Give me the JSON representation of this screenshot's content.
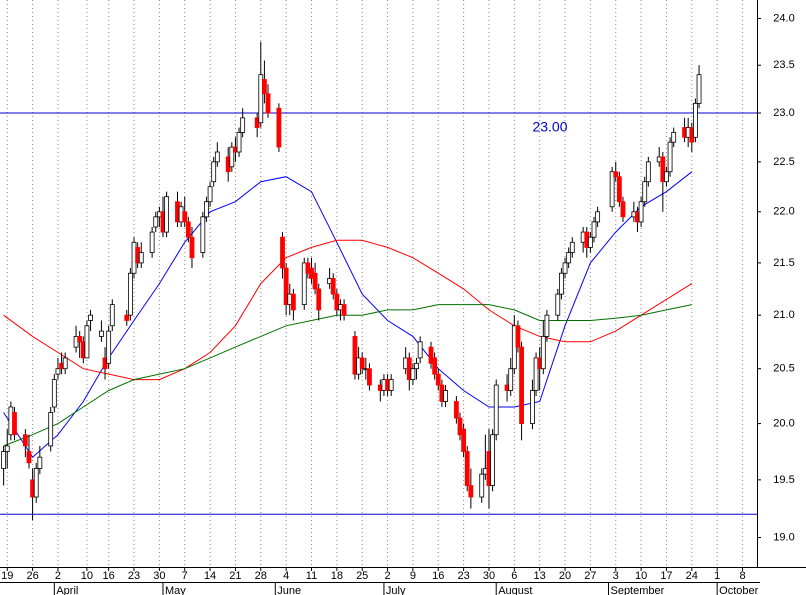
{
  "chart_data": {
    "type": "candlestick",
    "log_scale": true,
    "grid": true,
    "up_color": "#ffffff",
    "down_color": "#ff0000",
    "outline_color": "#000000",
    "xlim": [
      "03-17",
      "10-12"
    ],
    "ylim": [
      18.75,
      24.2
    ],
    "yticks": [
      {
        "value": 19,
        "label": "19.0"
      },
      {
        "value": 19.5,
        "label": "19.5"
      },
      {
        "value": 20,
        "label": "20.0"
      },
      {
        "value": 20.5,
        "label": "20.5"
      },
      {
        "value": 21,
        "label": "21.0"
      },
      {
        "value": 21.5,
        "label": "21.5"
      },
      {
        "value": 22,
        "label": "22.0"
      },
      {
        "value": 22.5,
        "label": "22.5"
      },
      {
        "value": 23,
        "label": "23.0"
      },
      {
        "value": 23.5,
        "label": "23.5"
      },
      {
        "value": 24,
        "label": "24.0"
      }
    ],
    "xticks": [
      {
        "value": "03-19",
        "label": "19"
      },
      {
        "value": "03-26",
        "label": "26"
      },
      {
        "value": "04-02",
        "label": "2"
      },
      {
        "value": "04-10",
        "label": "10"
      },
      {
        "value": "04-16",
        "label": "16"
      },
      {
        "value": "04-23",
        "label": "23"
      },
      {
        "value": "04-30",
        "label": "30"
      },
      {
        "value": "05-07",
        "label": "7"
      },
      {
        "value": "05-14",
        "label": "14"
      },
      {
        "value": "05-21",
        "label": "21"
      },
      {
        "value": "05-28",
        "label": "28"
      },
      {
        "value": "06-04",
        "label": "4"
      },
      {
        "value": "06-11",
        "label": "11"
      },
      {
        "value": "06-18",
        "label": "18"
      },
      {
        "value": "06-25",
        "label": "25"
      },
      {
        "value": "07-02",
        "label": "2"
      },
      {
        "value": "07-09",
        "label": "9"
      },
      {
        "value": "07-16",
        "label": "16"
      },
      {
        "value": "07-23",
        "label": "23"
      },
      {
        "value": "07-30",
        "label": "30"
      },
      {
        "value": "08-06",
        "label": "6"
      },
      {
        "value": "08-13",
        "label": "13"
      },
      {
        "value": "08-20",
        "label": "20"
      },
      {
        "value": "08-27",
        "label": "27"
      },
      {
        "value": "09-03",
        "label": "3"
      },
      {
        "value": "09-10",
        "label": "10"
      },
      {
        "value": "09-17",
        "label": "17"
      },
      {
        "value": "09-24",
        "label": "24"
      },
      {
        "value": "10-01",
        "label": "1"
      },
      {
        "value": "10-08",
        "label": "8"
      }
    ],
    "month_labels": [
      {
        "value": "04-01",
        "label": "April"
      },
      {
        "value": "05-01",
        "label": "May"
      },
      {
        "value": "06-01",
        "label": "June"
      },
      {
        "value": "07-01",
        "label": "July"
      },
      {
        "value": "08-01",
        "label": "August"
      },
      {
        "value": "09-01",
        "label": "September"
      },
      {
        "value": "10-01",
        "label": "October"
      }
    ],
    "hlines": [
      {
        "value": 23,
        "label": "23.00",
        "color": "#0000cc"
      },
      {
        "value": 19.2,
        "color": "#0000cc"
      }
    ],
    "x": [
      "03-18",
      "03-19",
      "03-20",
      "03-21",
      "03-24",
      "03-25",
      "03-26",
      "03-27",
      "03-28",
      "03-31",
      "04-01",
      "04-02",
      "04-03",
      "04-04",
      "04-07",
      "04-08",
      "04-09",
      "04-10",
      "04-11",
      "04-14",
      "04-15",
      "04-16",
      "04-17",
      "04-21",
      "04-22",
      "04-23",
      "04-24",
      "04-25",
      "04-28",
      "04-29",
      "04-30",
      "05-01",
      "05-02",
      "05-05",
      "05-06",
      "05-07",
      "05-08",
      "05-09",
      "05-12",
      "05-13",
      "05-14",
      "05-15",
      "05-16",
      "05-19",
      "05-20",
      "05-21",
      "05-22",
      "05-23",
      "05-27",
      "05-28",
      "05-29",
      "05-30",
      "06-02",
      "06-03",
      "06-04",
      "06-05",
      "06-06",
      "06-09",
      "06-10",
      "06-11",
      "06-12",
      "06-13",
      "06-16",
      "06-17",
      "06-18",
      "06-19",
      "06-20",
      "06-23",
      "06-24",
      "06-25",
      "06-26",
      "06-27",
      "06-30",
      "07-01",
      "07-02",
      "07-03",
      "07-07",
      "07-08",
      "07-09",
      "07-10",
      "07-11",
      "07-14",
      "07-15",
      "07-16",
      "07-17",
      "07-18",
      "07-21",
      "07-22",
      "07-23",
      "07-24",
      "07-25",
      "07-28",
      "07-29",
      "07-30",
      "07-31",
      "08-01",
      "08-04",
      "08-05",
      "08-06",
      "08-07",
      "08-08",
      "08-11",
      "08-12",
      "08-13",
      "08-14",
      "08-15",
      "08-18",
      "08-19",
      "08-20",
      "08-21",
      "08-22",
      "08-25",
      "08-26",
      "08-27",
      "08-28",
      "08-29",
      "09-02",
      "09-03",
      "09-04",
      "09-05",
      "09-08",
      "09-09",
      "09-10",
      "09-11",
      "09-12",
      "09-15",
      "09-16",
      "09-17",
      "09-18",
      "09-19",
      "09-22",
      "09-23",
      "09-24",
      "09-25",
      "09-26"
    ],
    "open": [
      19.6,
      19.75,
      19.9,
      20.1,
      19.9,
      19.75,
      19.5,
      19.35,
      19.6,
      19.8,
      20.15,
      20.45,
      20.55,
      20.5,
      20.7,
      20.8,
      20.75,
      20.6,
      20.95,
      20.8,
      20.6,
      20.55,
      20.9,
      21.0,
      21.0,
      21.4,
      21.65,
      21.5,
      21.6,
      21.85,
      21.95,
      22.0,
      21.8,
      22.1,
      21.9,
      22.0,
      21.9,
      21.75,
      21.6,
      21.95,
      22.1,
      22.3,
      22.5,
      22.55,
      22.45,
      22.65,
      22.6,
      22.8,
      22.95,
      22.9,
      23.35,
      23.2,
      23.05,
      21.75,
      21.45,
      21.1,
      21.2,
      21.1,
      21.5,
      21.45,
      21.4,
      21.25,
      21.3,
      21.35,
      21.2,
      21.05,
      21.1,
      20.8,
      20.45,
      20.6,
      20.5,
      20.5,
      20.35,
      20.3,
      20.4,
      20.3,
      20.5,
      20.6,
      20.4,
      20.5,
      20.6,
      20.7,
      20.6,
      20.45,
      20.35,
      20.2,
      20.2,
      20.05,
      19.95,
      19.75,
      19.45,
      19.35,
      19.55,
      19.75,
      19.45,
      19.9,
      20.35,
      20.3,
      20.5,
      20.9,
      20.7,
      20.0,
      20.3,
      20.6,
      20.5,
      20.8,
      21.0,
      21.2,
      21.4,
      21.5,
      21.6,
      21.7,
      21.8,
      21.65,
      21.75,
      21.9,
      22.05,
      22.4,
      22.35,
      22.1,
      21.95,
      22.0,
      21.9,
      22.1,
      22.3,
      22.5,
      22.55,
      22.3,
      22.4,
      22.7,
      22.85,
      22.75,
      22.85,
      22.75,
      23.1
    ],
    "high": [
      19.8,
      19.95,
      20.2,
      20.15,
      19.95,
      19.9,
      19.6,
      19.65,
      19.8,
      20.15,
      20.45,
      20.6,
      20.65,
      20.65,
      20.9,
      20.85,
      20.8,
      20.95,
      21.05,
      20.95,
      20.7,
      20.9,
      21.15,
      21.05,
      21.45,
      21.75,
      21.7,
      21.7,
      21.85,
      22.0,
      22.05,
      22.15,
      22.2,
      22.2,
      22.1,
      22.15,
      21.95,
      21.85,
      22.0,
      22.15,
      22.3,
      22.55,
      22.7,
      22.65,
      22.7,
      22.75,
      22.85,
      23.05,
      23.0,
      23.75,
      23.55,
      23.3,
      23.1,
      21.8,
      21.5,
      21.3,
      21.25,
      21.55,
      21.55,
      21.55,
      21.5,
      21.3,
      21.45,
      21.4,
      21.25,
      21.15,
      21.15,
      20.85,
      20.7,
      20.65,
      20.6,
      20.55,
      20.4,
      20.45,
      20.45,
      20.45,
      20.7,
      20.65,
      20.55,
      20.6,
      20.8,
      20.75,
      20.65,
      20.5,
      20.4,
      20.35,
      20.25,
      20.1,
      20.0,
      19.8,
      19.6,
      19.6,
      19.9,
      19.95,
      19.95,
      20.4,
      20.45,
      20.6,
      21.0,
      20.95,
      20.75,
      20.4,
      20.65,
      20.7,
      20.95,
      21.05,
      21.25,
      21.45,
      21.55,
      21.65,
      21.75,
      21.85,
      21.85,
      21.8,
      21.95,
      22.05,
      22.45,
      22.5,
      22.4,
      22.15,
      22.1,
      22.05,
      22.15,
      22.35,
      22.55,
      22.65,
      22.6,
      22.45,
      22.75,
      22.85,
      22.95,
      22.95,
      22.9,
      23.15,
      23.5
    ],
    "low": [
      19.45,
      19.6,
      19.85,
      19.85,
      19.7,
      19.6,
      19.15,
      19.3,
      19.55,
      19.75,
      20.1,
      20.4,
      20.45,
      20.45,
      20.65,
      20.6,
      20.55,
      20.6,
      20.85,
      20.75,
      20.4,
      20.5,
      20.85,
      20.9,
      20.95,
      21.35,
      21.45,
      21.45,
      21.55,
      21.8,
      21.85,
      21.75,
      21.75,
      21.85,
      21.85,
      21.85,
      21.7,
      21.45,
      21.55,
      21.9,
      22.05,
      22.25,
      22.45,
      22.3,
      22.4,
      22.5,
      22.55,
      22.75,
      22.75,
      22.85,
      23.1,
      22.95,
      22.6,
      21.35,
      21.0,
      21.0,
      20.95,
      21.05,
      21.35,
      21.3,
      21.2,
      20.95,
      21.25,
      21.15,
      21.0,
      20.95,
      20.95,
      20.4,
      20.4,
      20.45,
      20.4,
      20.3,
      20.2,
      20.25,
      20.25,
      20.25,
      20.45,
      20.3,
      20.35,
      20.4,
      20.55,
      20.5,
      20.4,
      20.3,
      20.15,
      20.15,
      20.0,
      19.85,
      19.7,
      19.4,
      19.25,
      19.3,
      19.5,
      19.25,
      19.4,
      19.85,
      20.2,
      20.25,
      20.45,
      20.65,
      19.85,
      19.95,
      20.25,
      20.3,
      20.45,
      20.75,
      20.95,
      21.15,
      21.35,
      21.45,
      21.55,
      21.6,
      21.55,
      21.6,
      21.7,
      21.85,
      22.0,
      22.3,
      22.05,
      21.9,
      21.9,
      21.8,
      21.85,
      22.05,
      22.25,
      22.45,
      22.0,
      22.25,
      22.35,
      22.65,
      22.7,
      22.65,
      22.6,
      22.7,
      23.05
    ],
    "close": [
      19.75,
      19.8,
      20.15,
      19.9,
      19.8,
      19.65,
      19.35,
      19.6,
      19.7,
      20.1,
      20.4,
      20.5,
      20.5,
      20.6,
      20.8,
      20.75,
      20.6,
      20.9,
      21.0,
      20.85,
      20.5,
      20.85,
      21.1,
      20.95,
      21.4,
      21.7,
      21.5,
      21.6,
      21.8,
      21.95,
      22.0,
      21.8,
      22.15,
      21.9,
      22.05,
      21.9,
      21.75,
      21.55,
      21.95,
      22.1,
      22.25,
      22.5,
      22.6,
      22.4,
      22.65,
      22.6,
      22.8,
      22.95,
      22.85,
      23.4,
      23.2,
      23.0,
      22.65,
      21.45,
      21.1,
      21.2,
      21.05,
      21.5,
      21.4,
      21.35,
      21.25,
      21.05,
      21.35,
      21.2,
      21.05,
      21.1,
      21.0,
      20.45,
      20.6,
      20.5,
      20.5,
      20.35,
      20.3,
      20.4,
      20.3,
      20.4,
      20.6,
      20.4,
      20.5,
      20.55,
      20.75,
      20.55,
      20.45,
      20.35,
      20.2,
      20.3,
      20.05,
      19.9,
      19.75,
      19.45,
      19.35,
      19.55,
      19.6,
      19.45,
      19.9,
      20.35,
      20.3,
      20.5,
      20.9,
      20.7,
      20.0,
      20.3,
      20.6,
      20.5,
      20.8,
      21.0,
      21.2,
      21.4,
      21.5,
      21.6,
      21.7,
      21.8,
      21.65,
      21.75,
      21.9,
      22.0,
      22.4,
      22.35,
      22.1,
      21.95,
      22.0,
      21.9,
      22.1,
      22.3,
      22.5,
      22.55,
      22.3,
      22.4,
      22.7,
      22.8,
      22.75,
      22.85,
      22.7,
      23.1,
      23.4
    ],
    "overlays": [
      {
        "color": "#0000ff",
        "x": [
          "03-18",
          "03-26",
          "04-02",
          "04-09",
          "04-16",
          "04-23",
          "04-30",
          "05-07",
          "05-14",
          "05-21",
          "05-28",
          "06-04",
          "06-11",
          "06-18",
          "06-25",
          "07-02",
          "07-09",
          "07-16",
          "07-23",
          "07-30",
          "08-06",
          "08-13",
          "08-20",
          "08-27",
          "09-03",
          "09-10",
          "09-17",
          "09-24"
        ],
        "values": [
          20.1,
          19.7,
          19.9,
          20.2,
          20.6,
          20.95,
          21.3,
          21.7,
          22.0,
          22.1,
          22.3,
          22.35,
          22.2,
          21.7,
          21.2,
          20.95,
          20.8,
          20.5,
          20.3,
          20.15,
          20.15,
          20.2,
          20.9,
          21.5,
          21.8,
          22.05,
          22.2,
          22.4
        ]
      },
      {
        "color": "#ff0000",
        "x": [
          "03-18",
          "03-26",
          "04-02",
          "04-09",
          "04-16",
          "04-23",
          "04-30",
          "05-07",
          "05-14",
          "05-21",
          "05-28",
          "06-04",
          "06-11",
          "06-18",
          "06-25",
          "07-02",
          "07-09",
          "07-16",
          "07-23",
          "07-30",
          "08-06",
          "08-13",
          "08-20",
          "08-27",
          "09-03",
          "09-10",
          "09-17",
          "09-24"
        ],
        "values": [
          21.0,
          20.8,
          20.65,
          20.5,
          20.45,
          20.4,
          20.4,
          20.5,
          20.65,
          20.9,
          21.3,
          21.55,
          21.65,
          21.72,
          21.72,
          21.65,
          21.55,
          21.4,
          21.25,
          21.05,
          20.9,
          20.8,
          20.75,
          20.75,
          20.85,
          21.0,
          21.15,
          21.3
        ]
      },
      {
        "color": "#007000",
        "x": [
          "03-18",
          "03-26",
          "04-02",
          "04-09",
          "04-16",
          "04-23",
          "04-30",
          "05-07",
          "05-14",
          "05-21",
          "05-28",
          "06-04",
          "06-11",
          "06-18",
          "06-25",
          "07-02",
          "07-09",
          "07-16",
          "07-23",
          "07-30",
          "08-06",
          "08-13",
          "08-20",
          "08-27",
          "09-03",
          "09-10",
          "09-17",
          "09-24"
        ],
        "values": [
          19.8,
          19.9,
          20.0,
          20.15,
          20.3,
          20.4,
          20.45,
          20.5,
          20.6,
          20.7,
          20.8,
          20.9,
          20.95,
          21.0,
          21.0,
          21.05,
          21.05,
          21.1,
          21.1,
          21.1,
          21.05,
          20.95,
          20.95,
          20.95,
          20.97,
          21.0,
          21.05,
          21.1
        ]
      }
    ]
  }
}
